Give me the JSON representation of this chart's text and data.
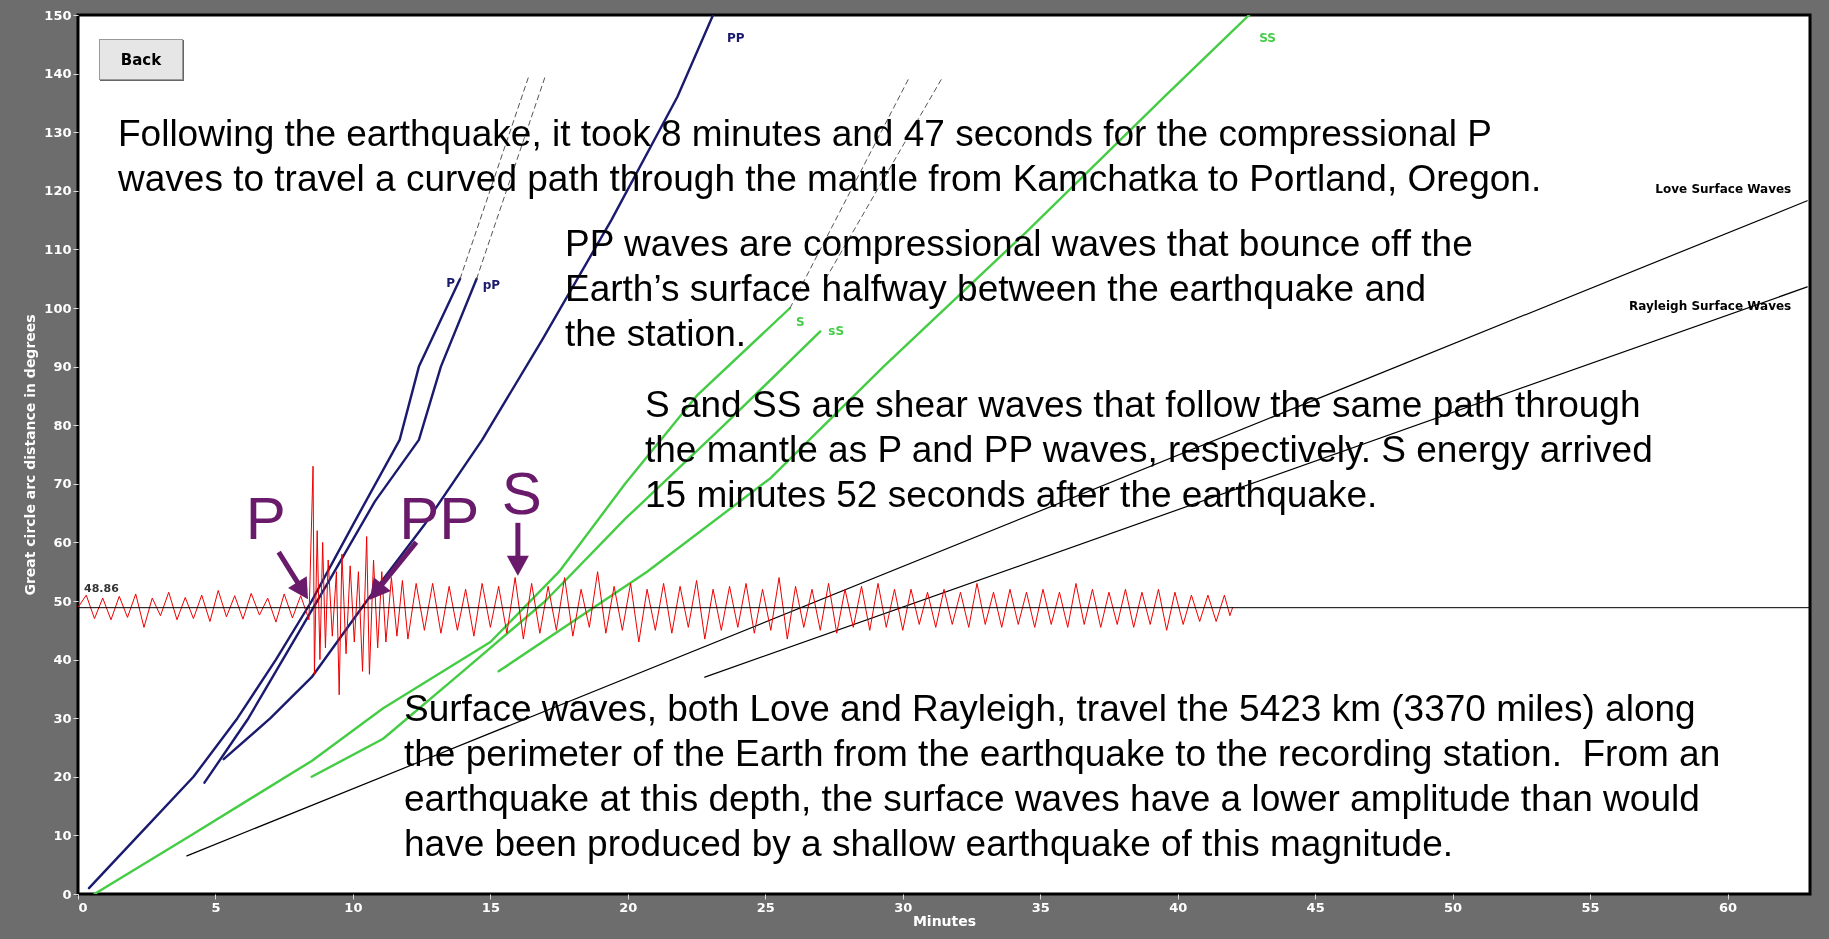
{
  "chart_data": {
    "type": "line",
    "xlabel": "Minutes",
    "ylabel": "Great circle arc distance in degrees",
    "xlim": [
      0,
      63
    ],
    "ylim": [
      0,
      150
    ],
    "xticks": [
      0,
      5,
      10,
      15,
      20,
      25,
      30,
      35,
      40,
      45,
      50,
      55,
      60
    ],
    "yticks": [
      0,
      10,
      20,
      30,
      40,
      50,
      60,
      70,
      80,
      90,
      100,
      110,
      120,
      130,
      140,
      150
    ],
    "ref_lines": [
      {
        "axis": "y",
        "value": 48.86,
        "label": "48.86",
        "color": "#000000"
      }
    ],
    "series": [
      {
        "name": "P",
        "color": "#1a1a6e",
        "x": [
          0.4,
          2.2,
          4.2,
          5.8,
          7.2,
          8.5,
          10.0,
          11.7,
          12.4,
          13.9
        ],
        "values": [
          1,
          10,
          20,
          30,
          40,
          50,
          63,
          77.5,
          90,
          105
        ]
      },
      {
        "name": "pP",
        "color": "#1a1a6e",
        "x": [
          4.6,
          6.2,
          7.7,
          9.2,
          10.8,
          12.4,
          13.2,
          14.5
        ],
        "values": [
          19,
          30,
          42,
          54,
          67,
          77.5,
          90,
          105
        ]
      },
      {
        "name": "PP",
        "color": "#1a1a6e",
        "x": [
          5.3,
          7,
          8.5,
          10.5,
          12.6,
          14.7,
          16.9,
          19.4,
          21.8,
          23.1
        ],
        "values": [
          23,
          30,
          37,
          50,
          63,
          77.5,
          94.7,
          115,
          136,
          150
        ]
      },
      {
        "name": "S",
        "color": "#44cc44",
        "x": [
          0.6,
          4.1,
          8.5,
          11.1,
          15,
          17.5,
          19.9,
          22.5,
          25.9
        ],
        "values": [
          0,
          10,
          22.7,
          31.7,
          43,
          55,
          70,
          85,
          100
        ]
      },
      {
        "name": "sS",
        "color": "#44cc44",
        "x": [
          8.5,
          11.1,
          14,
          17,
          19.9,
          23.5,
          27
        ],
        "values": [
          20,
          26.5,
          38,
          50,
          64,
          80,
          96
        ]
      },
      {
        "name": "SS",
        "color": "#44cc44",
        "x": [
          15.3,
          20.7,
          25.2,
          29.3,
          34.5,
          39.5,
          42.6
        ],
        "values": [
          38,
          55,
          71,
          90,
          113,
          136,
          150
        ]
      },
      {
        "name": "Love Surface Waves",
        "color": "#000000",
        "x": [
          3.96,
          62.9
        ],
        "values": [
          6.5,
          118.3
        ]
      },
      {
        "name": "Rayleigh Surface Waves",
        "color": "#000000",
        "x": [
          22.8,
          62.9
        ],
        "values": [
          37,
          103.6
        ]
      },
      {
        "color": "#ee0000",
        "x": [
          0,
          0.3,
          0.6,
          0.9,
          1.2,
          1.5,
          1.8,
          2.1,
          2.4,
          2.7,
          3.0,
          3.3,
          3.6,
          3.9,
          4.2,
          4.5,
          4.8,
          5.1,
          5.4,
          5.7,
          6.0,
          6.3,
          6.6,
          6.9,
          7.2,
          7.5,
          7.8,
          8.1,
          8.4,
          8.55,
          8.6,
          8.7,
          8.8,
          8.9,
          9.0,
          9.1,
          9.25,
          9.4,
          9.5,
          9.6,
          9.75,
          9.9,
          10.05,
          10.2,
          10.35,
          10.5,
          10.6,
          10.75,
          10.9,
          11.05,
          11.2,
          11.4,
          11.6,
          11.8,
          12.0,
          12.3,
          12.6,
          12.9,
          13.2,
          13.5,
          13.8,
          14.1,
          14.4,
          14.7,
          15.0,
          15.3,
          15.6,
          15.9,
          16.2,
          16.5,
          16.8,
          17.1,
          17.4,
          17.7,
          18.0,
          18.3,
          18.6,
          18.9,
          19.2,
          19.5,
          19.8,
          20.1,
          20.4,
          20.7,
          21.0,
          21.3,
          21.6,
          21.9,
          22.2,
          22.5,
          22.8,
          23.1,
          23.4,
          23.7,
          24.0,
          24.3,
          24.6,
          24.9,
          25.2,
          25.5,
          25.8,
          26.1,
          26.4,
          26.7,
          27.0,
          27.3,
          27.6,
          27.9,
          28.2,
          28.5,
          28.8,
          29.1,
          29.4,
          29.7,
          30.0,
          30.3,
          30.6,
          30.9,
          31.2,
          31.5,
          31.8,
          32.1,
          32.4,
          32.7,
          33.0,
          33.3,
          33.6,
          33.9,
          34.2,
          34.5,
          34.8,
          35.1,
          35.4,
          35.7,
          36.0,
          36.3,
          36.6,
          36.9,
          37.2,
          37.5,
          37.8,
          38.1,
          38.4,
          38.7,
          39.0,
          39.3,
          39.6,
          39.9,
          40.2,
          40.5,
          40.8,
          41.1,
          41.4,
          41.7,
          41.9,
          42.0
        ],
        "values": [
          48.9,
          51,
          47,
          50.5,
          46.8,
          50.8,
          47.2,
          51.2,
          45.5,
          50.5,
          47.5,
          51.5,
          46.8,
          50.6,
          47,
          51,
          46.5,
          51.8,
          47.3,
          50.9,
          46.9,
          51.3,
          47.6,
          50.5,
          46.4,
          51.2,
          47.1,
          50.9,
          46.8,
          73,
          37.5,
          62,
          40,
          60,
          42,
          57,
          44,
          55,
          34,
          58,
          41,
          56,
          43,
          55,
          38,
          61,
          37.5,
          57,
          42,
          55,
          43,
          54,
          44,
          53.5,
          43.5,
          53,
          45,
          53,
          44.5,
          52.5,
          45,
          52,
          44,
          53,
          45.5,
          52.5,
          44.5,
          54,
          43.5,
          53,
          44.5,
          52.5,
          45,
          54,
          44,
          52,
          45.5,
          55,
          44.5,
          52.5,
          45,
          53,
          43,
          52,
          45,
          53,
          44.5,
          52.5,
          45.5,
          53.5,
          43.5,
          52,
          45,
          52.5,
          45.5,
          53,
          44.5,
          52,
          45,
          54,
          43.5,
          52.5,
          45.5,
          52,
          45,
          53,
          44.5,
          52,
          45.5,
          52.5,
          45,
          53,
          45.5,
          52,
          45,
          52,
          46,
          51.5,
          45.5,
          52,
          46,
          51.5,
          45.5,
          53,
          46,
          51.5,
          45.5,
          52,
          46,
          51.5,
          45.5,
          52,
          46,
          51.5,
          45.5,
          53,
          46,
          52,
          45.5,
          51.5,
          46,
          52,
          45.5,
          51.5,
          46,
          52,
          45,
          51.5,
          46,
          51,
          46.5,
          51,
          46.5,
          51,
          47.5,
          48.9
        ]
      },
      {
        "color": "#555555",
        "line_style": "dashed",
        "x": [
          13.9,
          16.4
        ],
        "values": [
          105,
          139.6
        ]
      },
      {
        "color": "#555555",
        "line_style": "dashed",
        "x": [
          14.5,
          17.0
        ],
        "values": [
          105,
          139.6
        ]
      },
      {
        "color": "#555555",
        "line_style": "dashed",
        "x": [
          25.9,
          30.2
        ],
        "values": [
          100,
          139
        ]
      },
      {
        "color": "#555555",
        "line_style": "dashed",
        "x": [
          27.2,
          31.4
        ],
        "values": [
          105,
          139
        ]
      }
    ],
    "annotations": [
      "Back",
      "Following the earthquake, it took 8 minutes and 47 seconds for the compressional P\nwaves to travel a curved path through the mantle from Kamchatka to Portland, Oregon.",
      "PP waves are compressional waves that bounce off the\nEarth’s surface halfway between the earthquake and\nthe station.",
      "S and SS are shear waves that follow the same path through\nthe mantle as P and PP waves, respectively. S energy arrived\n15 minutes 52 seconds after the earthquake.",
      "Surface waves, both Love and Rayleigh, travel the 5423 km (3370 miles) along\nthe perimeter of the Earth from the earthquake to the recording station.  From an\nearthquake at this depth, the surface waves have a lower amplitude than would\nhave been produced by a shallow earthquake of this magnitude.",
      {
        "text": "P",
        "x": 8.5,
        "y": 49.3
      },
      {
        "text": "PP",
        "x": 10.45,
        "y": 49.3
      },
      {
        "text": "S",
        "x": 16.0,
        "y": 53.1
      }
    ]
  }
}
